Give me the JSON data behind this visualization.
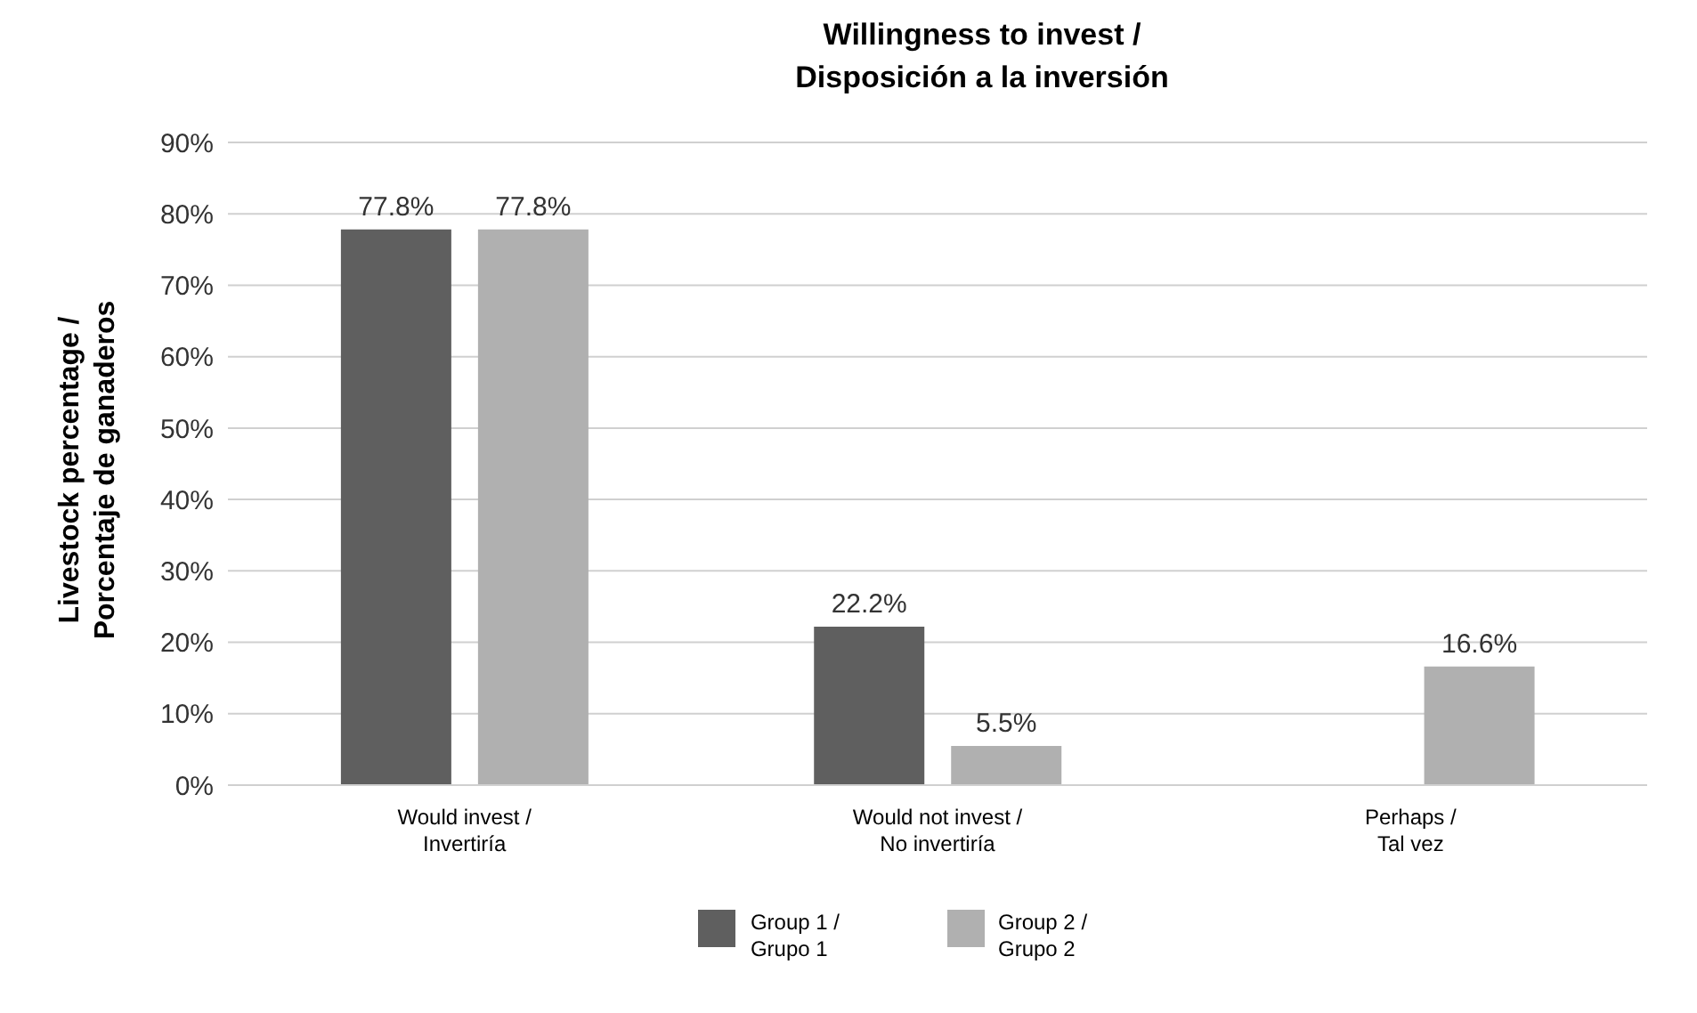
{
  "chart_data": {
    "type": "bar",
    "title": "Willingness to invest / Disposición a la inversión",
    "ylabel": "Livestock percentage / Porcentaje de ganaderos",
    "categories": [
      "Would invest / Invertiría",
      "Would not invest / No invertiría",
      "Perhaps / Tal vez"
    ],
    "series": [
      {
        "name": "Group 1 / Grupo 1",
        "color": "#5f5f5f",
        "values": [
          77.8,
          22.2,
          null
        ],
        "value_labels": [
          "77.8%",
          "22.2%",
          null
        ]
      },
      {
        "name": "Group 2 / Grupo 2",
        "color": "#b0b0b0",
        "values": [
          77.8,
          5.5,
          16.6
        ],
        "value_labels": [
          "77.8%",
          "5.5%",
          "16.6%"
        ]
      }
    ],
    "ylim": [
      0,
      90
    ],
    "yticks": [
      {
        "value": 0,
        "label": "0%"
      },
      {
        "value": 10,
        "label": "10%"
      },
      {
        "value": 20,
        "label": "20%"
      },
      {
        "value": 30,
        "label": "30%"
      },
      {
        "value": 40,
        "label": "40%"
      },
      {
        "value": 50,
        "label": "50%"
      },
      {
        "value": 60,
        "label": "60%"
      },
      {
        "value": 70,
        "label": "70%"
      },
      {
        "value": 80,
        "label": "80%"
      },
      {
        "value": 90,
        "label": "90%"
      }
    ],
    "grid": "y",
    "legend": "bottom"
  }
}
